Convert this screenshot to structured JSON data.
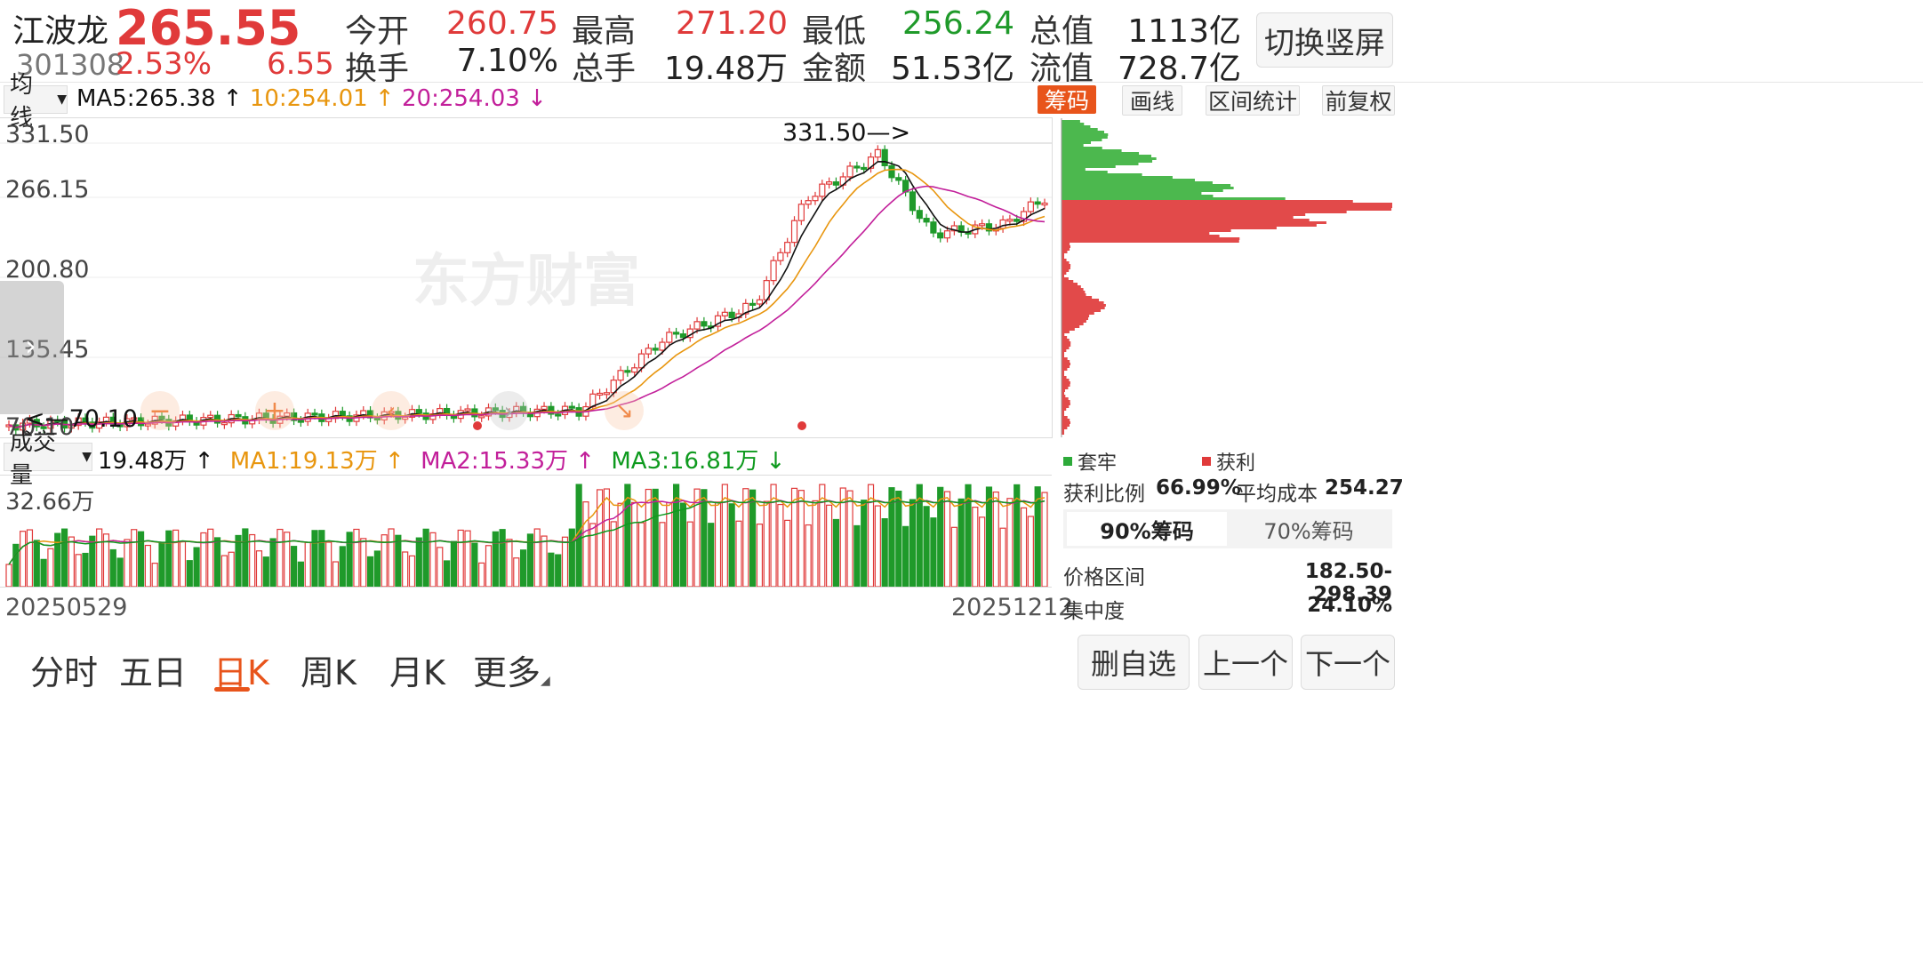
{
  "stock": {
    "name": "江波龙",
    "code": "301308",
    "price": "265.55",
    "change_pct": "2.53%",
    "change_abs": "6.55"
  },
  "quote": {
    "open_label": "今开",
    "open": "260.75",
    "high_label": "最高",
    "high": "271.20",
    "low_label": "最低",
    "low": "256.24",
    "mktcap_label": "总值",
    "mktcap": "1113亿",
    "turnover_label": "换手",
    "turnover": "7.10%",
    "vol_label": "总手",
    "vol": "19.48万",
    "amount_label": "金额",
    "amount": "51.53亿",
    "float_label": "流值",
    "float": "728.7亿"
  },
  "toggle_button": "切换竖屏",
  "ma_bar": {
    "selector": "均线",
    "ma5": "MA5:265.38",
    "ma5_arrow": "↑",
    "ma10": "10:254.01",
    "ma10_arrow": "↑",
    "ma20": "20:254.03",
    "ma20_arrow": "↓"
  },
  "tool_buttons": {
    "chips": "筹码",
    "draw": "画线",
    "range_stats": "区间统计",
    "adjust": "前复权"
  },
  "price_axis": [
    "331.50",
    "266.15",
    "200.80",
    "135.45",
    "70.10"
  ],
  "annotations": {
    "high_mark": "331.50",
    "low_mark": "70.10"
  },
  "watermark": "东方财富",
  "volume_bar": {
    "selector": "成交量",
    "vol": "19.48万",
    "vol_arrow": "↑",
    "ma1": "MA1:19.13万",
    "ma1_arrow": "↑",
    "ma2": "MA2:15.33万",
    "ma2_arrow": "↑",
    "ma3": "MA3:16.81万",
    "ma3_arrow": "↓",
    "axis_max": "32.66万"
  },
  "dates": {
    "start": "20250529",
    "end": "20251212"
  },
  "chips_panel": {
    "legend_trapped": "套牢",
    "legend_profit": "获利",
    "profit_ratio_label": "获利比例",
    "profit_ratio": "66.99%",
    "avg_cost_label": "平均成本",
    "avg_cost": "254.27",
    "tab_90": "90%筹码",
    "tab_70": "70%筹码",
    "price_range_label": "价格区间",
    "price_range": "182.50-298.39",
    "concentration_label": "集中度",
    "concentration": "24.10%"
  },
  "bottom_tabs": [
    "分时",
    "五日",
    "日K",
    "周K",
    "月K",
    "更多"
  ],
  "active_tab": "日K",
  "actions": {
    "remove_watch": "删自选",
    "prev": "上一个",
    "next": "下一个"
  },
  "colors": {
    "up": "#e03a3a",
    "down": "#1f9a2a",
    "ma5": "#111111",
    "ma10": "#e8960f",
    "ma20": "#c21f9a",
    "chips_button": "#e8541b"
  }
}
